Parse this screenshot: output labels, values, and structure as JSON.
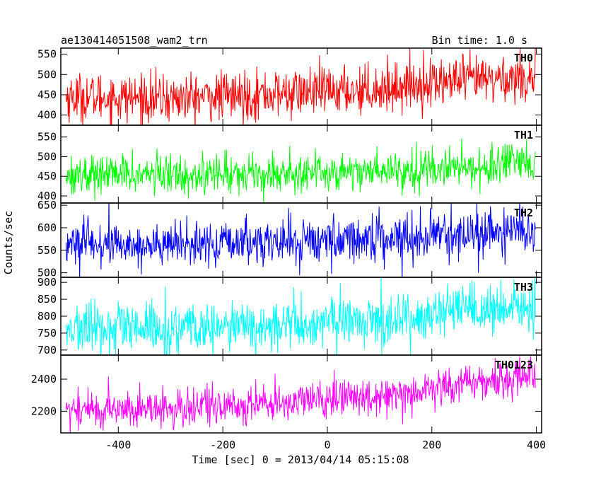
{
  "header": {
    "left_title": "ae130414051508_wam2_trn",
    "right_title": "Bin time: 1.0 s"
  },
  "chart_data": {
    "type": "line",
    "xlabel": "Time [sec] 0 = 2013/04/14 05:15:08",
    "ylabel": "Counts/sec",
    "xlim": [
      -510,
      410
    ],
    "x_ticks": [
      -400,
      -200,
      0,
      200,
      400
    ],
    "x_range": [
      -500,
      398
    ],
    "bin_time_s": 1.0,
    "grid": false,
    "panels": [
      {
        "name": "TH0",
        "color": "#ff0000",
        "ylim": [
          375,
          565
        ],
        "y_ticks": [
          400,
          450,
          500,
          550
        ],
        "trend": {
          "x": [
            -500,
            -300,
            -100,
            100,
            200,
            400
          ],
          "y": [
            445,
            440,
            452,
            465,
            480,
            495
          ]
        },
        "noise_amplitude": 30
      },
      {
        "name": "TH1",
        "color": "#00ff00",
        "ylim": [
          382,
          580
        ],
        "y_ticks": [
          400,
          450,
          500,
          550
        ],
        "trend": {
          "x": [
            -500,
            -300,
            -100,
            100,
            300,
            400
          ],
          "y": [
            455,
            455,
            458,
            465,
            475,
            480
          ]
        },
        "noise_amplitude": 25
      },
      {
        "name": "TH2",
        "color": "#0000ff",
        "ylim": [
          490,
          655
        ],
        "y_ticks": [
          500,
          550,
          600,
          650
        ],
        "trend": {
          "x": [
            -500,
            -300,
            -100,
            100,
            300,
            400
          ],
          "y": [
            565,
            560,
            568,
            578,
            588,
            592
          ]
        },
        "noise_amplitude": 25
      },
      {
        "name": "TH3",
        "color": "#00ffff",
        "ylim": [
          685,
          915
        ],
        "y_ticks": [
          700,
          750,
          800,
          850,
          900
        ],
        "trend": {
          "x": [
            -500,
            -300,
            -100,
            100,
            300,
            400
          ],
          "y": [
            762,
            760,
            770,
            790,
            815,
            825
          ]
        },
        "noise_amplitude": 38
      },
      {
        "name": "TH0123",
        "color": "#ff00ff",
        "ylim": [
          2065,
          2550
        ],
        "y_ticks": [
          2200,
          2400
        ],
        "trend": {
          "x": [
            -500,
            -300,
            -100,
            100,
            300,
            400
          ],
          "y": [
            2210,
            2215,
            2250,
            2300,
            2385,
            2430
          ]
        },
        "noise_amplitude": 60
      }
    ]
  }
}
